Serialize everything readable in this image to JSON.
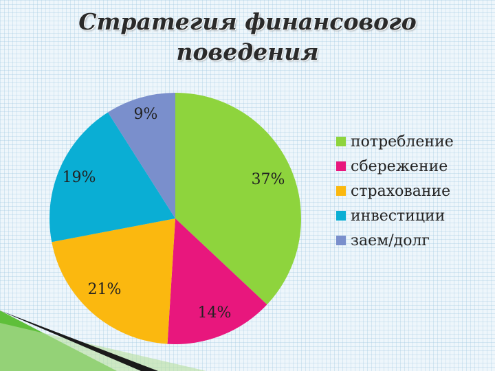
{
  "chart_data": {
    "type": "pie",
    "title": "Стратегия финансового поведения",
    "categories": [
      "потребление",
      "сбережение",
      "страхование",
      "инвестиции",
      "заем/долг"
    ],
    "values": [
      37,
      14,
      21,
      19,
      9
    ],
    "value_labels": [
      "37%",
      "14%",
      "21%",
      "19%",
      "9%"
    ],
    "colors": [
      "#8ed43d",
      "#e8177d",
      "#fbb80f",
      "#0aaed4",
      "#7a8fcc"
    ],
    "legend_position": "right"
  }
}
